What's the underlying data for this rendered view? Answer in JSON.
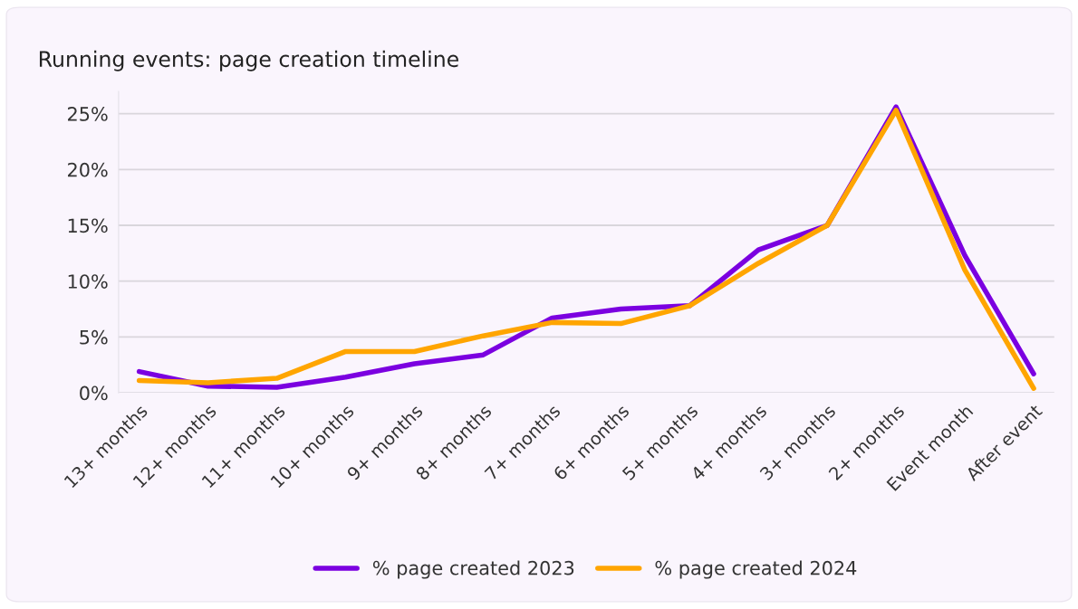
{
  "chart_data": {
    "type": "line",
    "title": "Running events: page creation timeline",
    "categories": [
      "13+ months",
      "12+ months",
      "11+ months",
      "10+ months",
      "9+ months",
      "8+ months",
      "7+ months",
      "6+ months",
      "5+ months",
      "4+ months",
      "3+ months",
      "2+ months",
      "Event month",
      "After event"
    ],
    "series": [
      {
        "name": "% page created 2023",
        "color": "#7b00e0",
        "values": [
          1.9,
          0.6,
          0.5,
          1.4,
          2.6,
          3.4,
          6.7,
          7.5,
          7.8,
          12.8,
          15.0,
          25.6,
          12.3,
          1.7
        ]
      },
      {
        "name": "% page created 2024",
        "color": "#ffa500",
        "values": [
          1.1,
          0.9,
          1.3,
          3.7,
          3.7,
          5.1,
          6.3,
          6.2,
          7.8,
          11.6,
          15.0,
          25.3,
          11.0,
          0.4
        ]
      }
    ],
    "yticks": [
      {
        "value": 0,
        "label": "0%"
      },
      {
        "value": 5,
        "label": "5%"
      },
      {
        "value": 10,
        "label": "10%"
      },
      {
        "value": 15,
        "label": "15%"
      },
      {
        "value": 20,
        "label": "20%"
      },
      {
        "value": 25,
        "label": "25%"
      }
    ],
    "ylim": [
      0,
      27
    ],
    "grid": "y",
    "legend": "bottom",
    "marker": "none",
    "line_style": "solid"
  }
}
